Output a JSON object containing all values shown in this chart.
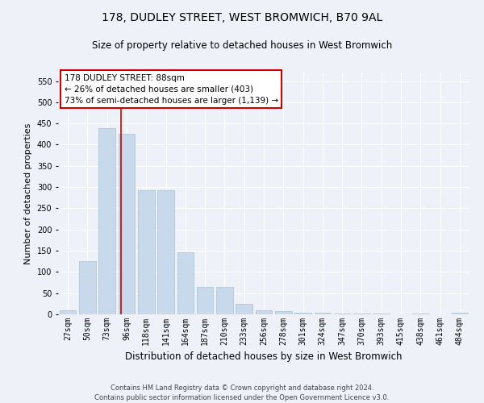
{
  "title": "178, DUDLEY STREET, WEST BROMWICH, B70 9AL",
  "subtitle": "Size of property relative to detached houses in West Bromwich",
  "xlabel": "Distribution of detached houses by size in West Bromwich",
  "ylabel": "Number of detached properties",
  "categories": [
    "27sqm",
    "50sqm",
    "73sqm",
    "96sqm",
    "118sqm",
    "141sqm",
    "164sqm",
    "187sqm",
    "210sqm",
    "233sqm",
    "256sqm",
    "278sqm",
    "301sqm",
    "324sqm",
    "347sqm",
    "370sqm",
    "393sqm",
    "415sqm",
    "438sqm",
    "461sqm",
    "484sqm"
  ],
  "values": [
    10,
    125,
    438,
    425,
    292,
    292,
    147,
    65,
    65,
    25,
    10,
    8,
    4,
    3,
    2,
    1,
    1,
    0,
    1,
    0,
    4
  ],
  "bar_color": "#c8d9eb",
  "bar_edge_color": "#a8bfd4",
  "vline_x": 2.72,
  "vline_color": "#cc0000",
  "ylim": [
    0,
    570
  ],
  "yticks": [
    0,
    50,
    100,
    150,
    200,
    250,
    300,
    350,
    400,
    450,
    500,
    550
  ],
  "annotation_title": "178 DUDLEY STREET: 88sqm",
  "annotation_line1": "← 26% of detached houses are smaller (403)",
  "annotation_line2": "73% of semi-detached houses are larger (1,139) →",
  "annotation_box_color": "#ffffff",
  "annotation_box_edge": "#cc0000",
  "footer_line1": "Contains HM Land Registry data © Crown copyright and database right 2024.",
  "footer_line2": "Contains public sector information licensed under the Open Government Licence v3.0.",
  "background_color": "#eef2f8",
  "plot_background": "#eef2f8",
  "grid_color": "#ffffff",
  "title_fontsize": 10,
  "subtitle_fontsize": 8.5,
  "xlabel_fontsize": 8.5,
  "ylabel_fontsize": 8,
  "tick_fontsize": 7,
  "annotation_fontsize": 7.5,
  "footer_fontsize": 6
}
